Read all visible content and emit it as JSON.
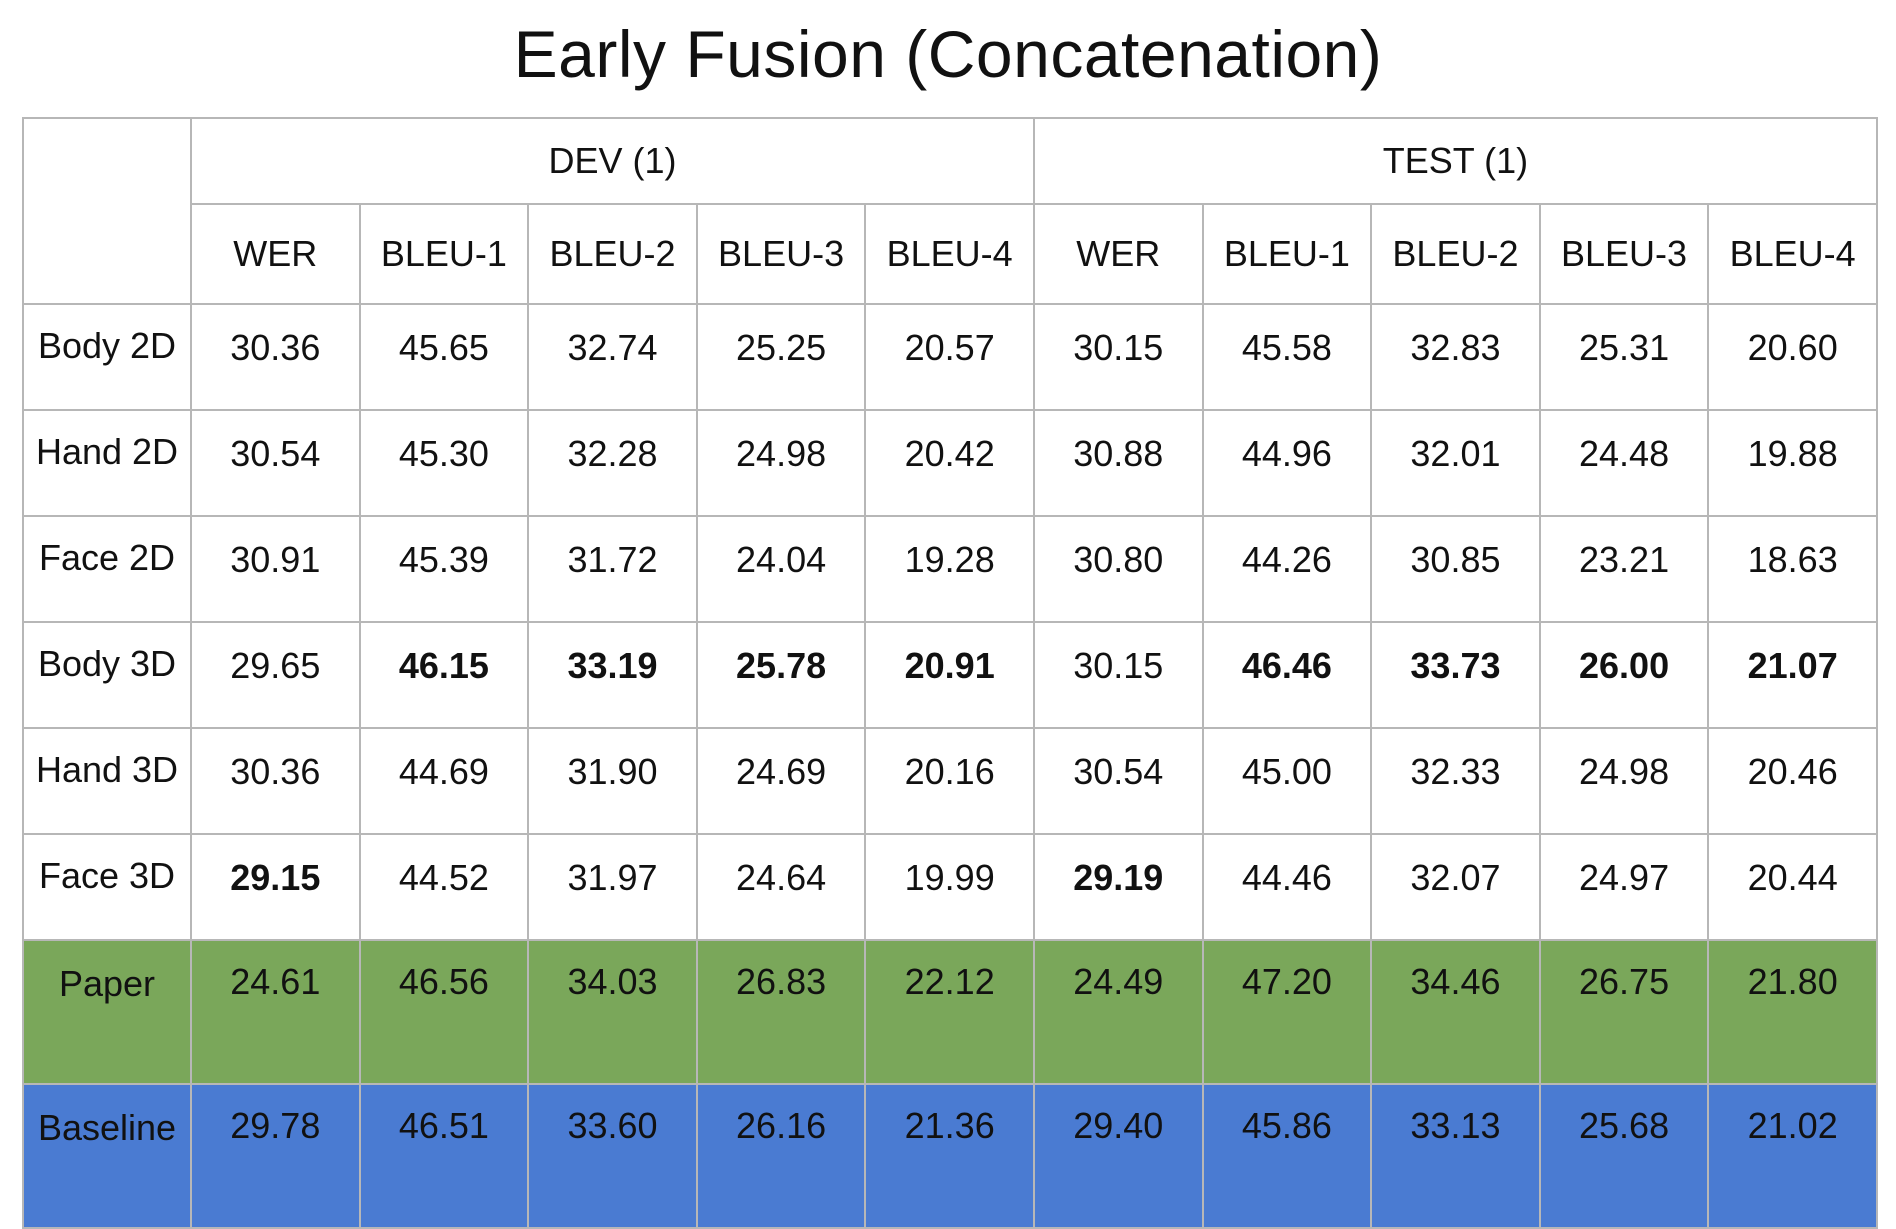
{
  "chart_data": {
    "type": "table",
    "title": "Early Fusion (Concatenation)",
    "groups": [
      {
        "label": "DEV (1)",
        "metrics": [
          "WER",
          "BLEU-1",
          "BLEU-2",
          "BLEU-3",
          "BLEU-4"
        ]
      },
      {
        "label": "TEST (1)",
        "metrics": [
          "WER",
          "BLEU-1",
          "BLEU-2",
          "BLEU-3",
          "BLEU-4"
        ]
      }
    ],
    "rows": [
      {
        "label": "Body 2D",
        "values": [
          "30.36",
          "45.65",
          "32.74",
          "25.25",
          "20.57",
          "30.15",
          "45.58",
          "32.83",
          "25.31",
          "20.60"
        ],
        "bold": []
      },
      {
        "label": "Hand 2D",
        "values": [
          "30.54",
          "45.30",
          "32.28",
          "24.98",
          "20.42",
          "30.88",
          "44.96",
          "32.01",
          "24.48",
          "19.88"
        ],
        "bold": []
      },
      {
        "label": "Face 2D",
        "values": [
          "30.91",
          "45.39",
          "31.72",
          "24.04",
          "19.28",
          "30.80",
          "44.26",
          "30.85",
          "23.21",
          "18.63"
        ],
        "bold": []
      },
      {
        "label": "Body 3D",
        "values": [
          "29.65",
          "46.15",
          "33.19",
          "25.78",
          "20.91",
          "30.15",
          "46.46",
          "33.73",
          "26.00",
          "21.07"
        ],
        "bold": [
          1,
          2,
          3,
          4,
          6,
          7,
          8,
          9
        ]
      },
      {
        "label": "Hand 3D",
        "values": [
          "30.36",
          "44.69",
          "31.90",
          "24.69",
          "20.16",
          "30.54",
          "45.00",
          "32.33",
          "24.98",
          "20.46"
        ],
        "bold": []
      },
      {
        "label": "Face 3D",
        "values": [
          "29.15",
          "44.52",
          "31.97",
          "24.64",
          "19.99",
          "29.19",
          "44.46",
          "32.07",
          "24.97",
          "20.44"
        ],
        "bold": [
          0,
          5
        ]
      },
      {
        "label": "Paper",
        "values": [
          "24.61",
          "46.56",
          "34.03",
          "26.83",
          "22.12",
          "24.49",
          "47.20",
          "34.46",
          "26.75",
          "21.80"
        ],
        "bold": [],
        "background": "#7aa75a"
      },
      {
        "label": "Baseline",
        "values": [
          "29.78",
          "46.51",
          "33.60",
          "26.16",
          "21.36",
          "29.40",
          "45.86",
          "33.13",
          "25.68",
          "21.02"
        ],
        "bold": [],
        "background": "#4a7bd2"
      }
    ]
  }
}
